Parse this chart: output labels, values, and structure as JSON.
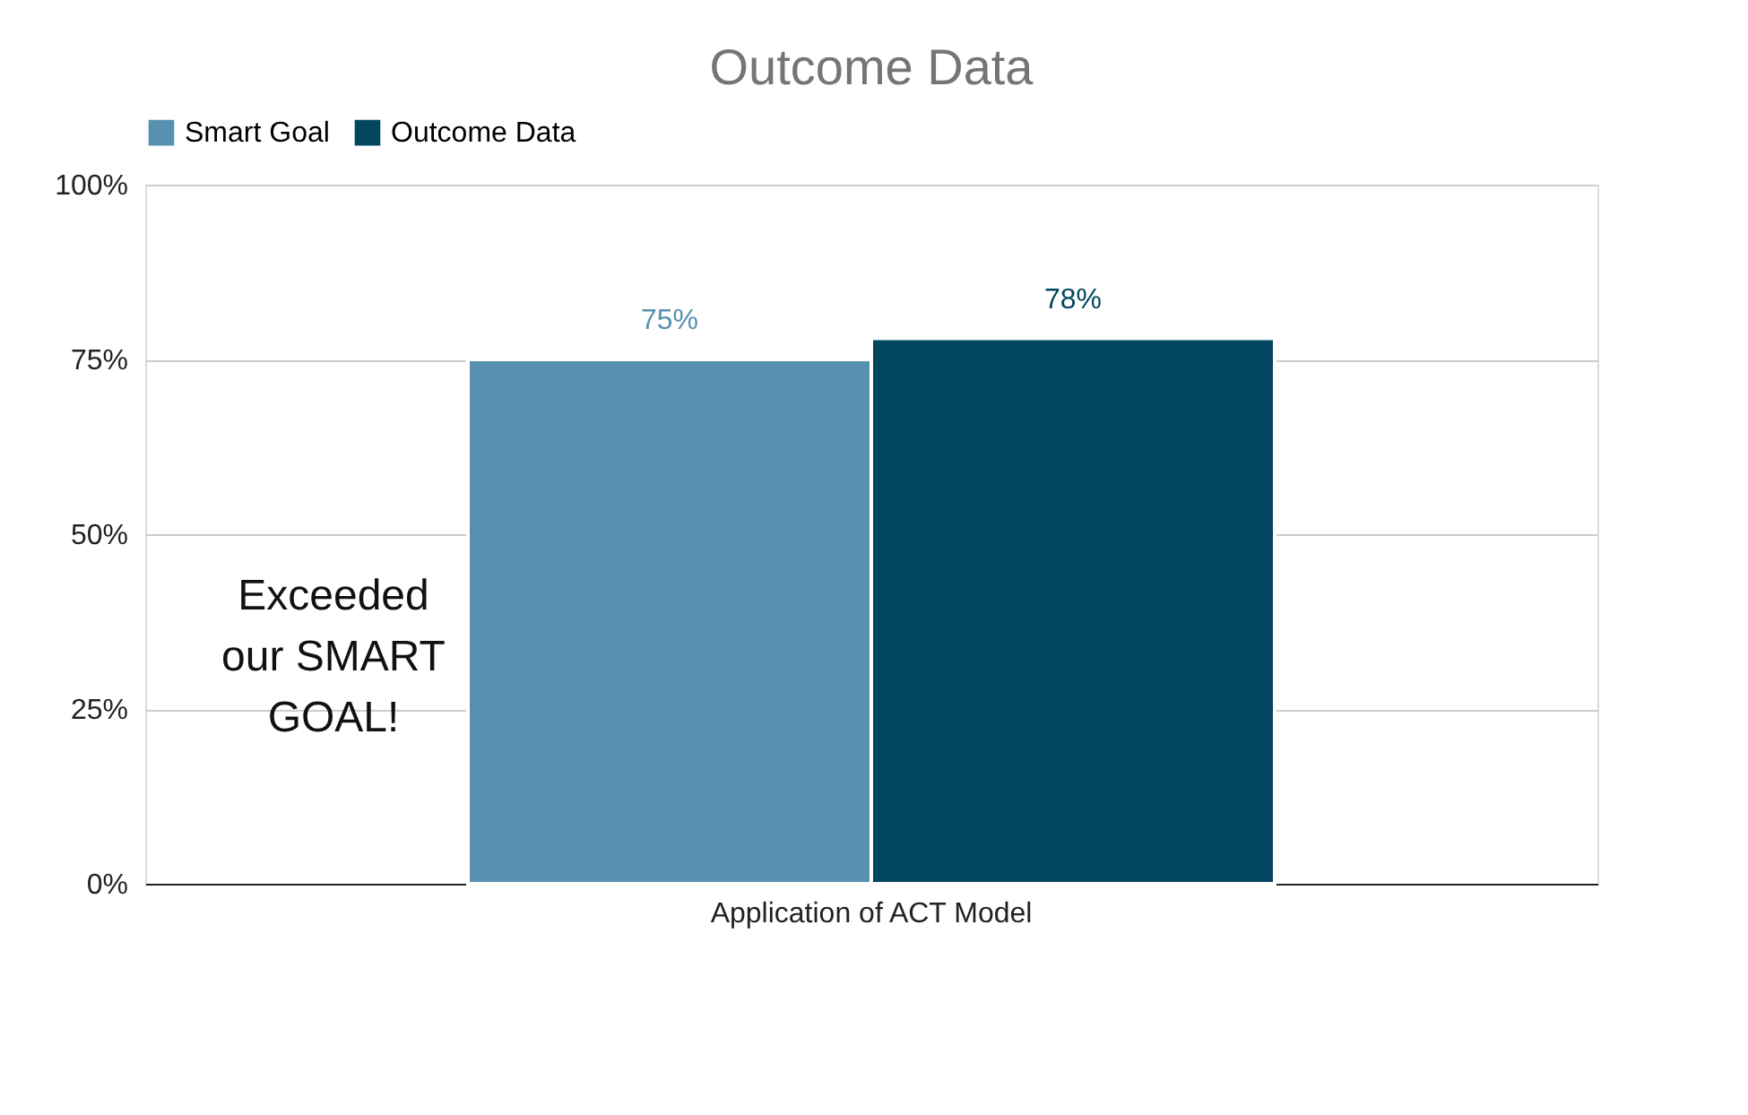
{
  "chart_data": {
    "type": "bar",
    "title": "Outcome Data",
    "categories": [
      "Application of ACT Model"
    ],
    "series": [
      {
        "name": "Smart Goal",
        "color": "#5891b0",
        "values": [
          75
        ]
      },
      {
        "name": "Outcome Data",
        "color": "#02475f",
        "values": [
          78
        ]
      }
    ],
    "ylim": [
      0,
      100
    ],
    "yticks": [
      {
        "value": 0,
        "label": "0%"
      },
      {
        "value": 25,
        "label": "25%"
      },
      {
        "value": 50,
        "label": "50%"
      },
      {
        "value": 75,
        "label": "75%"
      },
      {
        "value": 100,
        "label": "100%"
      }
    ],
    "value_labels": [
      [
        "75%"
      ],
      [
        "78%"
      ]
    ],
    "grid": "y",
    "legend": "top",
    "annotations": [
      "Exceeded our SMART GOAL!"
    ]
  }
}
